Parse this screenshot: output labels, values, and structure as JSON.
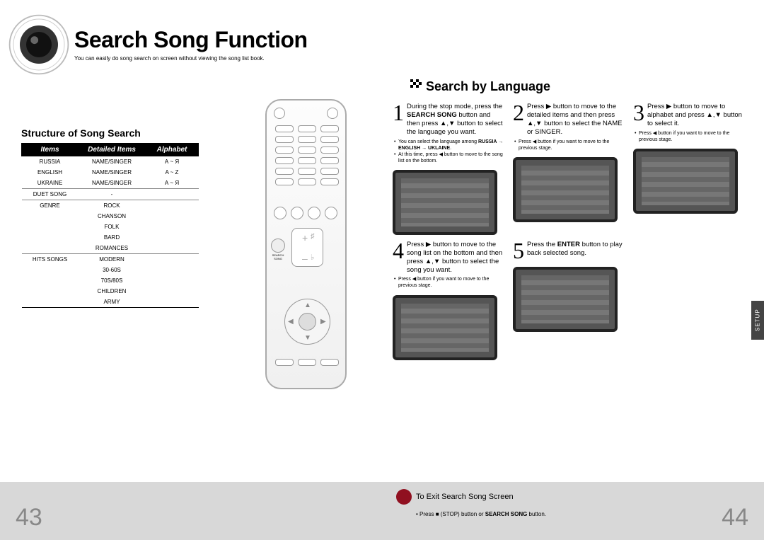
{
  "header": {
    "title": "Search Song Function",
    "subtitle": "You can easily do song search on screen without viewing the song list book."
  },
  "structure": {
    "heading": "Structure of Song Search",
    "columns": [
      "Items",
      "Detailed Items",
      "Alphabet"
    ],
    "rows": [
      {
        "cells": [
          "RUSSIA",
          "NAME/SINGER",
          "А ~ Я"
        ],
        "divider": false
      },
      {
        "cells": [
          "ENGLISH",
          "NAME/SINGER",
          "A ~ Z"
        ],
        "divider": false
      },
      {
        "cells": [
          "UKRAINE",
          "NAME/SINGER",
          "А ~ Я"
        ],
        "divider": true
      },
      {
        "cells": [
          "DUET SONG",
          "-",
          ""
        ],
        "divider": true
      },
      {
        "cells": [
          "GENRE",
          "ROCK",
          ""
        ],
        "divider": false
      },
      {
        "cells": [
          "",
          "CHANSON",
          ""
        ],
        "divider": false
      },
      {
        "cells": [
          "",
          "FOLK",
          ""
        ],
        "divider": false
      },
      {
        "cells": [
          "",
          "BARD",
          ""
        ],
        "divider": false
      },
      {
        "cells": [
          "",
          "ROMANCES",
          ""
        ],
        "divider": true
      },
      {
        "cells": [
          "HITS SONGS",
          "MODERN",
          ""
        ],
        "divider": false
      },
      {
        "cells": [
          "",
          "30-60S",
          ""
        ],
        "divider": false
      },
      {
        "cells": [
          "",
          "70S/80S",
          ""
        ],
        "divider": false
      },
      {
        "cells": [
          "",
          "CHILDREN",
          ""
        ],
        "divider": false
      },
      {
        "cells": [
          "",
          "ARMY",
          ""
        ],
        "divider": false
      }
    ]
  },
  "right_section": {
    "title": "Search by Language"
  },
  "steps": [
    {
      "num": "1",
      "html": "During the stop mode, press the <b>SEARCH SONG</b> button and then press ▲,▼ button to select the language you want.",
      "bullets": [
        "You can select the language among RUSSIA → ENGLISH → UKLAINE.",
        "At this time, press ◀ button to move to the song list on the bottom."
      ],
      "screen": true
    },
    {
      "num": "2",
      "html": "Press ▶ button to move to the detailed items and then press ▲,▼ button to select the NAME or SINGER.",
      "bullets": [
        "Press ◀ button if you want to move to the previous stage."
      ],
      "screen": true
    },
    {
      "num": "3",
      "html": "Press ▶ button to move to alphabet and press ▲,▼ button to select it.",
      "bullets": [
        "Press ◀ button if you want to move to the previous stage."
      ],
      "screen": true
    },
    {
      "num": "4",
      "html": "Press ▶ button to move to the song list on the bottom and then press ▲,▼ button to select the song you want.",
      "bullets": [
        "Press ◀ button if you want to move to the previous stage."
      ],
      "screen": true
    },
    {
      "num": "5",
      "html": "Press the <b>ENTER</b> button to play back selected song.",
      "bullets": [],
      "screen": true
    }
  ],
  "footer": {
    "exit_label": "To Exit Search Song Screen",
    "exit_sub": "• Press ■ (STOP) button or SEARCH SONG button.",
    "page_left": "43",
    "page_right": "44"
  },
  "side_tab": "SETUP",
  "colors": {
    "accent_red": "#901020",
    "footer_bg": "#d8d8d8",
    "page_num": "#888888"
  }
}
